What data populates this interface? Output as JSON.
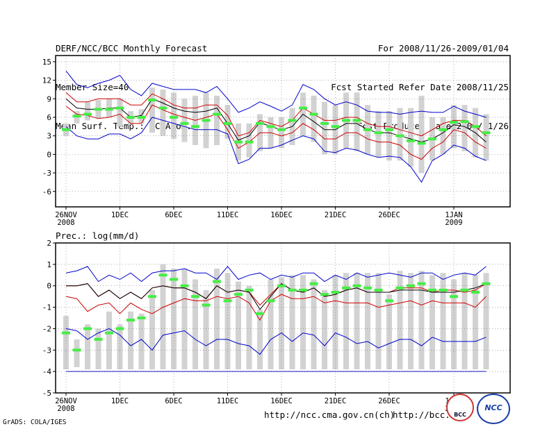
{
  "header": {
    "left": [
      "DERF/NCC/BCC Monthly Forecast",
      "Member Size=40",
      "Mean Surf. Temp.: °C Anom."
    ],
    "right": [
      "For 2008/11/26-2009/01/04",
      "Fcst Started Refer Date 2008/11/25",
      "Fcst Produced Date 2008/11/26"
    ]
  },
  "footer": {
    "credit": "GrADS: COLA/IGES",
    "url1": "http://ncc.cma.gov.cn(ch)",
    "url2": "http://bcc.",
    "logo_bcc": "BCC",
    "logo_ncc": "NCC"
  },
  "colors": {
    "spread": "#d2d2d2",
    "envelope": "#0000cc",
    "quantile": "#cc0000",
    "mean": "#000000",
    "observed": "#44ee44"
  },
  "chart_data": [
    {
      "type": "line",
      "name": "temperature",
      "title": "Mean Surf. Temp.: °C Anom.",
      "ylim": [
        -8.5,
        16
      ],
      "yticks": [
        -6,
        -3,
        0,
        3,
        6,
        9,
        12,
        15
      ],
      "xticks": [
        {
          "day": 0,
          "label": "26NOV",
          "sub": "2008"
        },
        {
          "day": 5,
          "label": "1DEC",
          "sub": ""
        },
        {
          "day": 10,
          "label": "6DEC",
          "sub": ""
        },
        {
          "day": 15,
          "label": "11DEC",
          "sub": ""
        },
        {
          "day": 20,
          "label": "16DEC",
          "sub": ""
        },
        {
          "day": 25,
          "label": "21DEC",
          "sub": ""
        },
        {
          "day": 30,
          "label": "26DEC",
          "sub": ""
        },
        {
          "day": 36,
          "label": "1JAN",
          "sub": "2009"
        }
      ],
      "days": 40,
      "series": [
        {
          "name": "max",
          "values": [
            13.5,
            11.3,
            10.8,
            11.5,
            12,
            12.8,
            10.5,
            9.5,
            11.5,
            11,
            10.5,
            10.5,
            10.5,
            10,
            11,
            9,
            6.8,
            7.5,
            8.5,
            7.8,
            7,
            8,
            11.3,
            10.5,
            9,
            8,
            8.5,
            8,
            7,
            6.8,
            6.8,
            6.5,
            6.8,
            7,
            6.8,
            6.8,
            7.8,
            7,
            6.5,
            6
          ]
        },
        {
          "name": "q_upper",
          "values": [
            10,
            8.5,
            8.5,
            9,
            9,
            9,
            8,
            8,
            9.8,
            9,
            8,
            7.5,
            7.5,
            8,
            8,
            6.3,
            3,
            3.5,
            5.5,
            5,
            4.5,
            5.5,
            7.5,
            6.5,
            5.5,
            5.5,
            6,
            6,
            5,
            4.5,
            4.5,
            4,
            3.5,
            3,
            4,
            5,
            5.5,
            5.5,
            4.5,
            3
          ]
        },
        {
          "name": "mean",
          "values": [
            9,
            7.5,
            7.3,
            7.3,
            7.5,
            7.5,
            6,
            6.3,
            9,
            8.3,
            7.5,
            7,
            6.8,
            7,
            7.5,
            5,
            2.3,
            3,
            5.2,
            4.5,
            4,
            4.5,
            6.5,
            5.3,
            4,
            4,
            5,
            5,
            4,
            3.5,
            3.5,
            3,
            2.5,
            2,
            2.5,
            3.5,
            4.8,
            4.5,
            3.5,
            2
          ]
        },
        {
          "name": "q_lower",
          "values": [
            7.8,
            6.5,
            6.3,
            5.8,
            6,
            6.5,
            5,
            5,
            8,
            7.2,
            6.5,
            6,
            5.5,
            6,
            6.5,
            4,
            1,
            2,
            3.5,
            3.5,
            3,
            3.5,
            5,
            4,
            2.5,
            2.5,
            3.5,
            3.5,
            2.5,
            2,
            2,
            1.5,
            0,
            -0.8,
            1,
            2,
            4,
            3.5,
            2,
            1
          ]
        },
        {
          "name": "min",
          "values": [
            4.5,
            3,
            2.5,
            2.5,
            3.3,
            3.3,
            2.5,
            3.5,
            6,
            5.5,
            5,
            4.5,
            4,
            4,
            4,
            3.3,
            -1.5,
            -0.8,
            1,
            1,
            1.5,
            2.3,
            3,
            2.5,
            0.5,
            0.3,
            1,
            0.7,
            0,
            -0.5,
            -0.3,
            -0.5,
            -2,
            -4.5,
            -1,
            0,
            1.5,
            1,
            -0.3,
            -1
          ]
        }
      ],
      "spread": [
        [
          3,
          5
        ],
        [
          5,
          7
        ],
        [
          5.5,
          8.5
        ],
        [
          5.8,
          8.8
        ],
        [
          6,
          9
        ],
        [
          4.5,
          9
        ],
        [
          4.8,
          7
        ],
        [
          5,
          7.3
        ],
        [
          3.5,
          10.8
        ],
        [
          3,
          10.5
        ],
        [
          2.5,
          10
        ],
        [
          2,
          9
        ],
        [
          1.5,
          9.5
        ],
        [
          1,
          10
        ],
        [
          1.5,
          9.5
        ],
        [
          2.5,
          8
        ],
        [
          -1,
          5
        ],
        [
          -0.5,
          5
        ],
        [
          0.5,
          6.5
        ],
        [
          1,
          6
        ],
        [
          1,
          6
        ],
        [
          1.5,
          7.5
        ],
        [
          3,
          10
        ],
        [
          2,
          9.5
        ],
        [
          0,
          8.5
        ],
        [
          0,
          8
        ],
        [
          1,
          10
        ],
        [
          0.5,
          10
        ],
        [
          0,
          8
        ],
        [
          -0.5,
          7
        ],
        [
          -1,
          7
        ],
        [
          -1,
          7.5
        ],
        [
          -2,
          7.5
        ],
        [
          -3,
          9.5
        ],
        [
          -1,
          6
        ],
        [
          0,
          6
        ],
        [
          1,
          8
        ],
        [
          0.5,
          8
        ],
        [
          -0.5,
          7.5
        ],
        [
          -1,
          6.5
        ]
      ],
      "observed": [
        4,
        6.2,
        6.5,
        7.3,
        7.3,
        7.5,
        6,
        6,
        8.8,
        7.5,
        6,
        5,
        4.5,
        5.5,
        6.5,
        5,
        2,
        2,
        5,
        4.5,
        4,
        5.5,
        7.5,
        6.5,
        5,
        4.5,
        5.5,
        5.5,
        4,
        3.5,
        4,
        3,
        2.2,
        1.8,
        2.5,
        4,
        5.2,
        5.3,
        4.5,
        3.5
      ]
    },
    {
      "type": "line",
      "name": "precipitation",
      "title": "Prec.: log(mm/d)",
      "ylim": [
        -5,
        2
      ],
      "yticks": [
        -5,
        -4,
        -3,
        -2,
        -1,
        0,
        1,
        2
      ],
      "xticks": [
        {
          "day": 0,
          "label": "26NOV",
          "sub": "2008"
        },
        {
          "day": 5,
          "label": "1DEC",
          "sub": ""
        },
        {
          "day": 10,
          "label": "6DEC",
          "sub": ""
        },
        {
          "day": 15,
          "label": "11DEC",
          "sub": ""
        },
        {
          "day": 20,
          "label": "16DEC",
          "sub": ""
        },
        {
          "day": 25,
          "label": "21DEC",
          "sub": ""
        },
        {
          "day": 30,
          "label": "26DEC",
          "sub": ""
        },
        {
          "day": 36,
          "label": "1JAN",
          "sub": "2009"
        }
      ],
      "days": 40,
      "series": [
        {
          "name": "max",
          "values": [
            0.6,
            0.7,
            0.9,
            0.2,
            0.5,
            0.3,
            0.6,
            0.2,
            0.6,
            0.7,
            0.7,
            0.8,
            0.6,
            0.6,
            0.3,
            0.9,
            0.3,
            0.5,
            0.6,
            0.3,
            0.5,
            0.4,
            0.6,
            0.6,
            0.2,
            0.5,
            0.3,
            0.6,
            0.4,
            0.5,
            0.6,
            0.5,
            0.4,
            0.6,
            0.6,
            0.3,
            0.5,
            0.6,
            0.5,
            0.9
          ]
        },
        {
          "name": "q_upper",
          "values": [
            0,
            0,
            0.1,
            -0.5,
            -0.2,
            -0.6,
            -0.3,
            -0.6,
            -0.1,
            0,
            -0.1,
            -0.1,
            -0.3,
            -0.6,
            0,
            -0.3,
            -0.2,
            -0.3,
            -0.9,
            -0.4,
            0.1,
            -0.2,
            -0.3,
            -0.1,
            -0.5,
            -0.4,
            -0.2,
            -0.1,
            -0.3,
            -0.3,
            -0.3,
            -0.1,
            -0.1,
            -0.1,
            -0.3,
            -0.2,
            -0.2,
            -0.3,
            -0.2,
            0.1
          ]
        },
        {
          "name": "mean",
          "values": [
            0,
            0,
            0.1,
            -0.5,
            -0.2,
            -0.6,
            -0.3,
            -0.6,
            -0.1,
            0,
            -0.1,
            -0.1,
            -0.3,
            -0.6,
            0,
            -0.3,
            -0.2,
            -0.3,
            -1.1,
            -0.5,
            0.1,
            -0.2,
            -0.3,
            -0.1,
            -0.5,
            -0.4,
            -0.2,
            -0.1,
            -0.3,
            -0.3,
            -0.3,
            -0.2,
            -0.2,
            -0.2,
            -0.3,
            -0.3,
            -0.3,
            -0.2,
            -0.1,
            0.1
          ]
        },
        {
          "name": "q_lower",
          "values": [
            -0.5,
            -0.6,
            -1.2,
            -0.9,
            -0.8,
            -1.3,
            -0.8,
            -1.1,
            -1.3,
            -1,
            -0.8,
            -0.6,
            -0.7,
            -0.7,
            -0.5,
            -0.6,
            -0.5,
            -0.8,
            -1.6,
            -0.7,
            -0.4,
            -0.6,
            -0.6,
            -0.5,
            -0.8,
            -0.7,
            -0.8,
            -0.8,
            -0.8,
            -1,
            -0.9,
            -0.8,
            -0.7,
            -0.9,
            -0.7,
            -0.8,
            -0.8,
            -0.8,
            -1,
            -0.5
          ]
        },
        {
          "name": "min",
          "values": [
            -2,
            -2.1,
            -2.5,
            -2.2,
            -2,
            -2.3,
            -2.8,
            -2.5,
            -3,
            -2.3,
            -2.2,
            -2.1,
            -2.5,
            -2.8,
            -2.5,
            -2.5,
            -2.7,
            -2.8,
            -3.2,
            -2.5,
            -2.2,
            -2.6,
            -2.2,
            -2.3,
            -2.8,
            -2.2,
            -2.4,
            -2.7,
            -2.6,
            -2.9,
            -2.7,
            -2.5,
            -2.5,
            -2.8,
            -2.4,
            -2.6,
            -2.6,
            -2.6,
            -2.6,
            -2.4
          ]
        }
      ],
      "floor": -4,
      "spread": [
        [
          -3.9,
          -1.4
        ],
        [
          -3.8,
          -2.5
        ],
        [
          -3.9,
          -1.8
        ],
        [
          -3.9,
          -2
        ],
        [
          -3.9,
          -1.2
        ],
        [
          -3.9,
          -1.8
        ],
        [
          -3.9,
          -1.2
        ],
        [
          -3.9,
          -1.3
        ],
        [
          -3.9,
          -0.2
        ],
        [
          -3.9,
          1
        ],
        [
          -3.9,
          0.8
        ],
        [
          -3.9,
          0.8
        ],
        [
          -3.9,
          0.3
        ],
        [
          -3.9,
          -0.2
        ],
        [
          -3.9,
          0.8
        ],
        [
          -3.9,
          0.6
        ],
        [
          -3.9,
          0.2
        ],
        [
          -3.9,
          0
        ],
        [
          -3.9,
          -1.1
        ],
        [
          -3.9,
          0.3
        ],
        [
          -3.9,
          0.4
        ],
        [
          -3.9,
          0.5
        ],
        [
          -3.9,
          0.5
        ],
        [
          -3.9,
          0.3
        ],
        [
          -3.9,
          -0.2
        ],
        [
          -3.9,
          0.5
        ],
        [
          -3.9,
          0.6
        ],
        [
          -3.9,
          0.6
        ],
        [
          -3.9,
          0.6
        ],
        [
          -3.9,
          0.6
        ],
        [
          -3.9,
          -0.4
        ],
        [
          -3.9,
          0.7
        ],
        [
          -3.9,
          0.6
        ],
        [
          -3.9,
          0.7
        ],
        [
          -3.9,
          0.5
        ],
        [
          -3.9,
          0.6
        ],
        [
          -3.9,
          0.3
        ],
        [
          -3.9,
          0.6
        ],
        [
          -3.9,
          0.5
        ],
        [
          -3.9,
          0.6
        ]
      ],
      "observed": [
        -2.2,
        -3,
        -2,
        -2.5,
        -2.2,
        -2,
        -1.6,
        -1.5,
        -0.5,
        0.5,
        0.3,
        0,
        -0.5,
        -0.9,
        0.2,
        -0.7,
        -0.4,
        -0.2,
        -1.3,
        -0.7,
        0,
        -0.2,
        -0.2,
        0.1,
        -0.4,
        -0.3,
        -0.1,
        0,
        -0.1,
        -0.2,
        -0.7,
        -0.1,
        0,
        0.1,
        -0.2,
        -0.2,
        -0.5,
        -0.2,
        -0.3,
        0.1
      ]
    }
  ]
}
